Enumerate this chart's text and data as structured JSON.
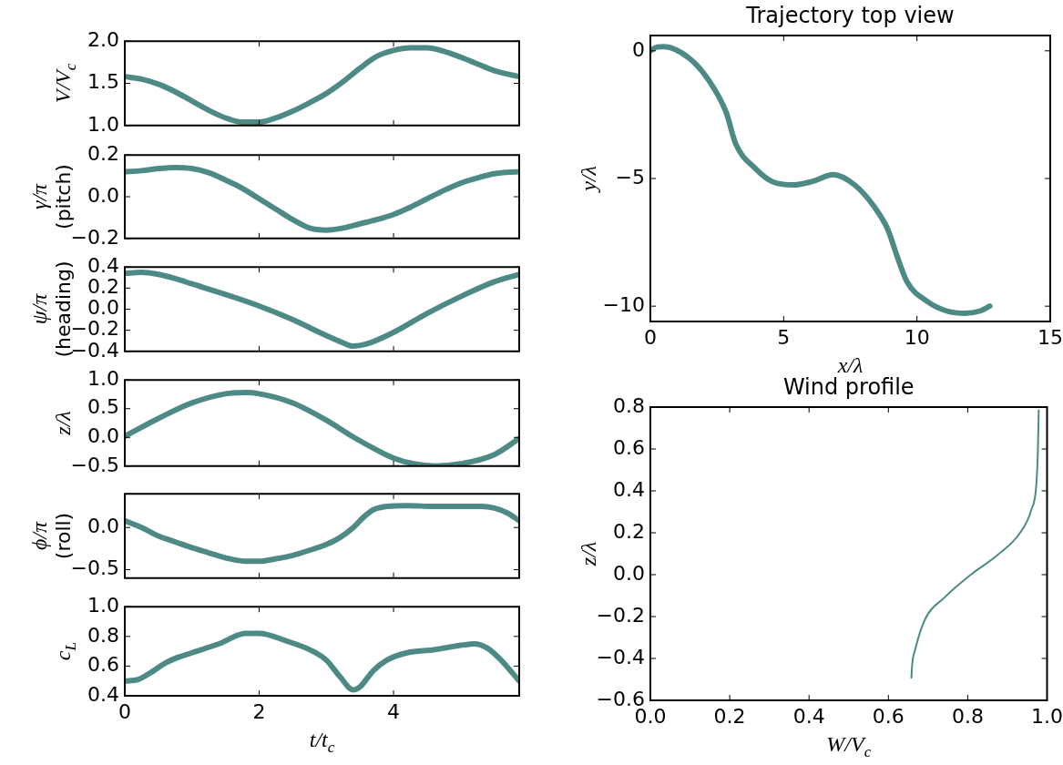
{
  "chart_data": [
    {
      "type": "line",
      "ylabel": "V/V$_{c}$",
      "color": "#4e8a85",
      "tick_labels": "y",
      "xlim": [
        0,
        5.87
      ],
      "xticks": [
        0,
        2,
        4
      ],
      "ylim": [
        1,
        2
      ],
      "yticks": [
        {
          "value": 1,
          "label": "1.0"
        },
        {
          "value": 1.5,
          "label": "1.5"
        },
        {
          "value": 2,
          "label": "2.0"
        }
      ],
      "x": [
        0,
        0.25,
        0.5,
        0.75,
        1,
        1.25,
        1.5,
        1.75,
        2,
        2.25,
        2.5,
        2.75,
        3,
        3.25,
        3.5,
        3.75,
        4,
        4.25,
        4.5,
        4.75,
        5,
        5.25,
        5.5,
        5.75,
        5.87
      ],
      "values": [
        1.58,
        1.55,
        1.49,
        1.4,
        1.29,
        1.18,
        1.09,
        1.04,
        1.04,
        1.09,
        1.17,
        1.27,
        1.38,
        1.52,
        1.68,
        1.82,
        1.89,
        1.92,
        1.92,
        1.88,
        1.81,
        1.73,
        1.65,
        1.6,
        1.58
      ]
    },
    {
      "type": "line",
      "ylabel": "γ/π\n(pitch)",
      "color": "#4e8a85",
      "tick_labels": "y",
      "xlim": [
        0,
        5.87
      ],
      "xticks": [
        0,
        2,
        4
      ],
      "ylim": [
        -0.2,
        0.2
      ],
      "yticks": [
        {
          "value": -0.2,
          "label": "−0.2"
        },
        {
          "value": 0,
          "label": "0.0"
        },
        {
          "value": 0.2,
          "label": "0.2"
        }
      ],
      "x": [
        0,
        0.25,
        0.5,
        0.75,
        1,
        1.25,
        1.5,
        1.75,
        2,
        2.25,
        2.5,
        2.75,
        3,
        3.25,
        3.5,
        3.75,
        4,
        4.25,
        4.5,
        4.75,
        5,
        5.25,
        5.5,
        5.87
      ],
      "values": [
        0.12,
        0.125,
        0.135,
        0.14,
        0.135,
        0.115,
        0.08,
        0.04,
        -0.01,
        -0.06,
        -0.11,
        -0.15,
        -0.16,
        -0.15,
        -0.13,
        -0.11,
        -0.085,
        -0.05,
        -0.01,
        0.03,
        0.065,
        0.09,
        0.11,
        0.12
      ]
    },
    {
      "type": "line",
      "ylabel": "ψ/π\n(heading)",
      "color": "#4e8a85",
      "tick_labels": "y",
      "xlim": [
        0,
        5.87
      ],
      "xticks": [
        0,
        2,
        4
      ],
      "ylim": [
        -0.4,
        0.4
      ],
      "yticks": [
        {
          "value": -0.4,
          "label": "−0.4"
        },
        {
          "value": -0.2,
          "label": "−0.2"
        },
        {
          "value": 0,
          "label": "0.0"
        },
        {
          "value": 0.2,
          "label": "0.2"
        },
        {
          "value": 0.4,
          "label": "0.4"
        }
      ],
      "x": [
        0,
        0.25,
        0.5,
        0.75,
        1,
        1.5,
        2,
        2.5,
        3,
        3.25,
        3.4,
        3.6,
        4,
        4.5,
        5,
        5.5,
        5.87
      ],
      "values": [
        0.34,
        0.35,
        0.33,
        0.29,
        0.24,
        0.14,
        0.03,
        -0.1,
        -0.25,
        -0.32,
        -0.35,
        -0.33,
        -0.22,
        -0.04,
        0.12,
        0.26,
        0.33
      ]
    },
    {
      "type": "line",
      "ylabel": "z/λ",
      "color": "#4e8a85",
      "tick_labels": "y",
      "xlim": [
        0,
        5.87
      ],
      "xticks": [
        0,
        2,
        4
      ],
      "ylim": [
        -0.5,
        1
      ],
      "yticks": [
        {
          "value": -0.5,
          "label": "−0.5"
        },
        {
          "value": 0,
          "label": "0.0"
        },
        {
          "value": 0.5,
          "label": "0.5"
        },
        {
          "value": 1,
          "label": "1.0"
        }
      ],
      "x": [
        0,
        0.5,
        1,
        1.5,
        1.8,
        2,
        2.5,
        3,
        3.41,
        3.75,
        4,
        4.3,
        4.62,
        5,
        5.5,
        5.87
      ],
      "values": [
        0.02,
        0.33,
        0.6,
        0.76,
        0.78,
        0.76,
        0.6,
        0.3,
        0,
        -0.22,
        -0.36,
        -0.46,
        -0.5,
        -0.46,
        -0.3,
        -0.02
      ]
    },
    {
      "type": "line",
      "ylabel": "ϕ/π\n(roll)",
      "color": "#4e8a85",
      "tick_labels": "y",
      "xlim": [
        0,
        5.87
      ],
      "xticks": [
        0,
        2,
        4
      ],
      "ylim": [
        -0.6,
        0.4
      ],
      "yticks": [
        {
          "value": -0.5,
          "label": "−0.5"
        },
        {
          "value": 0,
          "label": "0.0"
        }
      ],
      "x": [
        0,
        0.25,
        0.5,
        0.75,
        1,
        1.25,
        1.5,
        1.8,
        2,
        2.25,
        2.5,
        2.75,
        3,
        3.2,
        3.4,
        3.55,
        3.7,
        3.9,
        4.2,
        4.6,
        5,
        5.3,
        5.5,
        5.7,
        5.87
      ],
      "values": [
        0.08,
        0,
        -0.1,
        -0.17,
        -0.24,
        -0.3,
        -0.36,
        -0.4,
        -0.4,
        -0.37,
        -0.33,
        -0.27,
        -0.2,
        -0.12,
        0,
        0.12,
        0.21,
        0.25,
        0.26,
        0.25,
        0.25,
        0.25,
        0.23,
        0.17,
        0.08
      ]
    },
    {
      "type": "line",
      "ylabel": "c$_{L}$",
      "xlabel": "t/t$_{c}$",
      "color": "#4e8a85",
      "xlim": [
        0,
        5.87
      ],
      "xticks": [
        0,
        2,
        4
      ],
      "ylim": [
        0.4,
        1
      ],
      "yticks": [
        {
          "value": 0.4,
          "label": "0.4"
        },
        {
          "value": 0.6,
          "label": "0.6"
        },
        {
          "value": 0.8,
          "label": "0.8"
        },
        {
          "value": 1,
          "label": "1.0"
        }
      ],
      "x": [
        0,
        0.2,
        0.4,
        0.6,
        0.8,
        1,
        1.4,
        1.8,
        2,
        2.4,
        2.8,
        3,
        3.2,
        3.4,
        3.5,
        3.7,
        3.9,
        4.2,
        4.6,
        5,
        5.2,
        5.4,
        5.6,
        5.87
      ],
      "values": [
        0.5,
        0.51,
        0.56,
        0.62,
        0.66,
        0.69,
        0.75,
        0.82,
        0.82,
        0.77,
        0.7,
        0.64,
        0.53,
        0.44,
        0.46,
        0.57,
        0.64,
        0.69,
        0.71,
        0.74,
        0.75,
        0.72,
        0.64,
        0.5
      ]
    },
    {
      "type": "line",
      "title": "Trajectory top view",
      "xlabel": "x/λ",
      "ylabel": "y/λ",
      "color": "#4e8a85",
      "xlim": [
        0,
        15
      ],
      "xticks": [
        0,
        5,
        10,
        15
      ],
      "ylim": [
        -10.6,
        0.6
      ],
      "yticks": [
        {
          "value": -10,
          "label": "−10"
        },
        {
          "value": -5,
          "label": "−5"
        },
        0
      ],
      "x": [
        0,
        0.25,
        0.5,
        1.48,
        2.2,
        2.84,
        3.2,
        3.96,
        4.57,
        5.38,
        6.06,
        6.86,
        7.66,
        8.4,
        8.9,
        9.27,
        9.64,
        10.38,
        11.12,
        11.8,
        12.36,
        12.73
      ],
      "values": [
        0,
        0.15,
        0.16,
        -0.31,
        -1.17,
        -2.4,
        -3.64,
        -4.63,
        -5.12,
        -5.25,
        -5.12,
        -4.85,
        -5.25,
        -6.11,
        -6.98,
        -8.09,
        -9.07,
        -9.81,
        -10.19,
        -10.28,
        -10.19,
        -10
      ]
    },
    {
      "type": "line",
      "title": "Wind profile",
      "xlabel": "W/V$_{c}$",
      "ylabel": "z/λ",
      "color": "#4e8a85",
      "xlim": [
        0,
        1
      ],
      "xticks": [
        {
          "value": 0,
          "label": "0.0"
        },
        {
          "value": 0.2,
          "label": "0.2"
        },
        {
          "value": 0.4,
          "label": "0.4"
        },
        {
          "value": 0.6,
          "label": "0.6"
        },
        {
          "value": 0.8,
          "label": "0.8"
        },
        {
          "value": 1,
          "label": "1.0"
        }
      ],
      "ylim": [
        -0.6,
        0.8
      ],
      "yticks": [
        {
          "value": -0.6,
          "label": "−0.6"
        },
        {
          "value": -0.4,
          "label": "−0.4"
        },
        {
          "value": -0.2,
          "label": "−0.2"
        },
        {
          "value": 0,
          "label": "0.0"
        },
        {
          "value": 0.2,
          "label": "0.2"
        },
        {
          "value": 0.4,
          "label": "0.4"
        },
        {
          "value": 0.6,
          "label": "0.6"
        },
        {
          "value": 0.8,
          "label": "0.8"
        }
      ],
      "x": [
        0.658,
        0.66,
        0.668,
        0.692,
        0.742,
        0.808,
        0.874,
        0.932,
        0.96,
        0.973,
        0.977,
        0.979
      ],
      "values": [
        -0.492,
        -0.43,
        -0.354,
        -0.215,
        -0.108,
        0,
        0.092,
        0.2,
        0.308,
        0.431,
        0.6,
        0.785
      ]
    }
  ]
}
